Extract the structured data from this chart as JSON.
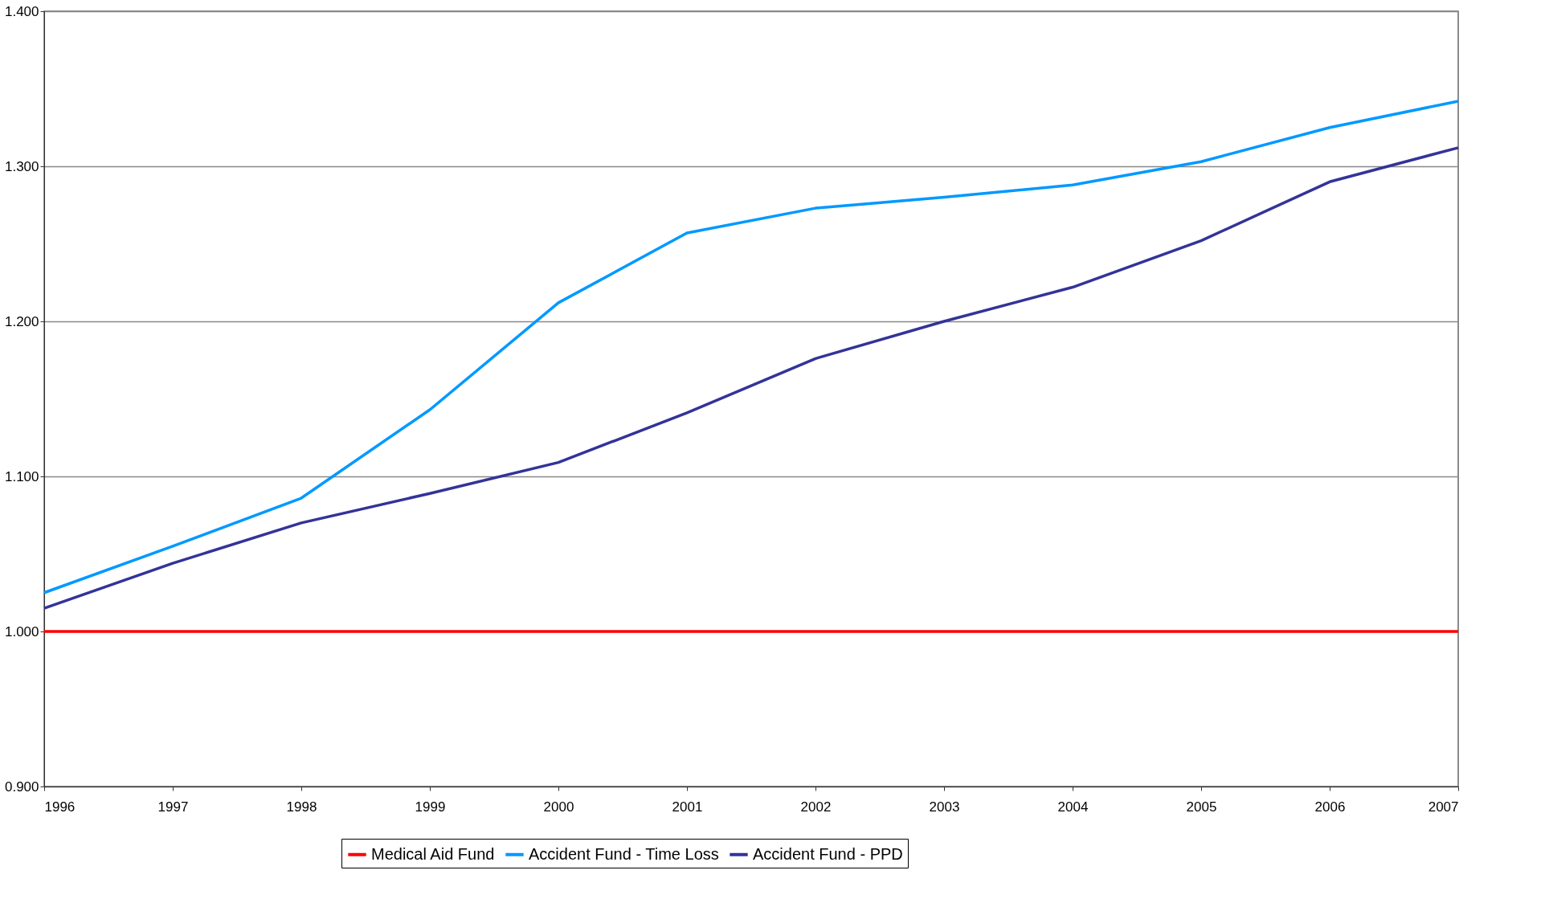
{
  "chart_data": {
    "type": "line",
    "x": [
      1996,
      1997,
      1998,
      1999,
      2000,
      2001,
      2002,
      2003,
      2004,
      2005,
      2006,
      2007
    ],
    "series": [
      {
        "name": "Medical Aid Fund",
        "color": "#ff0000",
        "values": [
          1.0,
          1.0,
          1.0,
          1.0,
          1.0,
          1.0,
          1.0,
          1.0,
          1.0,
          1.0,
          1.0,
          1.0
        ]
      },
      {
        "name": "Accident Fund - Time Loss",
        "color": "#0099ff",
        "values": [
          1.025,
          1.055,
          1.086,
          1.143,
          1.212,
          1.257,
          1.273,
          1.28,
          1.288,
          1.303,
          1.325,
          1.342
        ]
      },
      {
        "name": "Accident Fund - PPD",
        "color": "#333399",
        "values": [
          1.015,
          1.044,
          1.07,
          1.089,
          1.109,
          1.141,
          1.176,
          1.2,
          1.222,
          1.252,
          1.29,
          1.312
        ]
      }
    ],
    "xlim": [
      1996,
      2007
    ],
    "xticks": [
      1996,
      1997,
      1998,
      1999,
      2000,
      2001,
      2002,
      2003,
      2004,
      2005,
      2006,
      2007
    ],
    "ylim": [
      0.9,
      1.4
    ],
    "yticks": [
      {
        "value": 0.9,
        "label": "0.900"
      },
      {
        "value": 1.0,
        "label": "1.000"
      },
      {
        "value": 1.1,
        "label": "1.100"
      },
      {
        "value": 1.2,
        "label": "1.200"
      },
      {
        "value": 1.3,
        "label": "1.300"
      },
      {
        "value": 1.4,
        "label": "1.400"
      }
    ],
    "grid": "y",
    "legend": "bottom",
    "marker": "none",
    "line_style": "solid"
  }
}
